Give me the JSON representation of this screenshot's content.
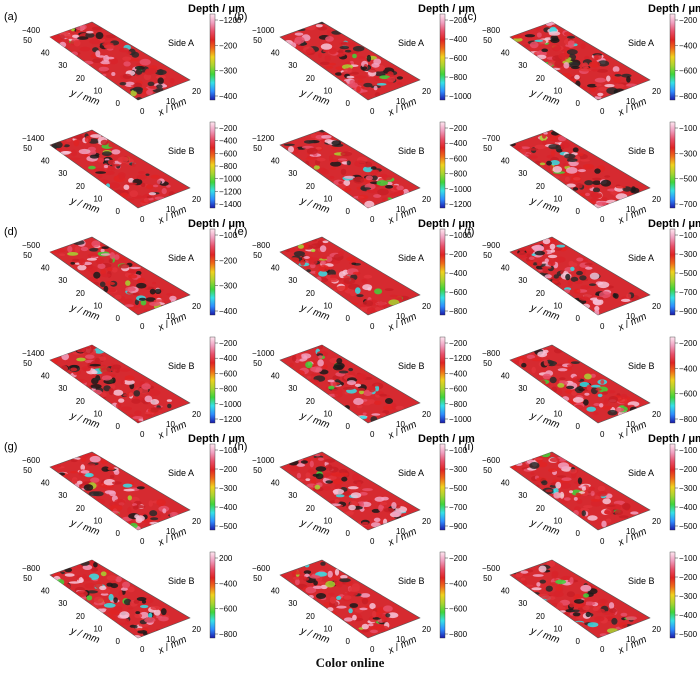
{
  "figure": {
    "caption": "Color online",
    "colorbar_title": "Depth / μm",
    "x_axis_label": "x / mm",
    "y_axis_label": "y / mm",
    "x_ticks": [
      "0",
      "10",
      "20"
    ],
    "y_ticks": [
      "0",
      "10",
      "20",
      "30",
      "40",
      "50"
    ],
    "colormap": [
      "#1a1aa8",
      "#2f8cff",
      "#35e0e8",
      "#3fd43a",
      "#a8d430",
      "#f0d21e",
      "#f06a18",
      "#e02323",
      "#e8506a",
      "#f0a0c0",
      "#ffe6f0"
    ],
    "panels": [
      {
        "label": "(a)",
        "surfaces": [
          {
            "side": "Side A",
            "corner": "−400",
            "ticks": [
              "−1200",
              "−200",
              "−300",
              "−400"
            ]
          },
          {
            "side": "Side B",
            "corner": "−1400",
            "ticks": [
              "−200",
              "−400",
              "−600",
              "−800",
              "−1000",
              "−1200",
              "−1400"
            ]
          }
        ]
      },
      {
        "label": "(b)",
        "surfaces": [
          {
            "side": "Side A",
            "corner": "−1000",
            "ticks": [
              "−200",
              "−400",
              "−600",
              "−800",
              "−1000"
            ]
          },
          {
            "side": "Side B",
            "corner": "−1200",
            "ticks": [
              "−200",
              "−400",
              "−600",
              "−800",
              "−1000",
              "−1200"
            ]
          }
        ]
      },
      {
        "label": "(c)",
        "surfaces": [
          {
            "side": "Side A",
            "corner": "−800",
            "ticks": [
              "−200",
              "−400",
              "−600",
              "−800"
            ]
          },
          {
            "side": "Side B",
            "corner": "−700",
            "ticks": [
              "−100",
              "−300",
              "−500",
              "−700"
            ]
          }
        ]
      },
      {
        "label": "(d)",
        "surfaces": [
          {
            "side": "Side A",
            "corner": "−500",
            "ticks": [
              "−100",
              "−200",
              "−300",
              "−400"
            ]
          },
          {
            "side": "Side B",
            "corner": "−1400",
            "ticks": [
              "−200",
              "−400",
              "−600",
              "−800",
              "−1000",
              "−1200"
            ]
          }
        ]
      },
      {
        "label": "(e)",
        "surfaces": [
          {
            "side": "Side A",
            "corner": "−800",
            "ticks": [
              "−1000",
              "−200",
              "−400",
              "−600",
              "−800"
            ]
          },
          {
            "side": "Side B",
            "corner": "−1000",
            "ticks": [
              "−200",
              "−1200",
              "−400",
              "−600",
              "−800",
              "−1000"
            ]
          }
        ]
      },
      {
        "label": "(f)",
        "surfaces": [
          {
            "side": "Side A",
            "corner": "−900",
            "ticks": [
              "−100",
              "−300",
              "−500",
              "−700",
              "−900"
            ]
          },
          {
            "side": "Side B",
            "corner": "−800",
            "ticks": [
              "−200",
              "−400",
              "−600",
              "−800"
            ]
          }
        ]
      },
      {
        "label": "(g)",
        "surfaces": [
          {
            "side": "Side A",
            "corner": "−600",
            "ticks": [
              "−100",
              "−200",
              "−300",
              "−400",
              "−500"
            ]
          },
          {
            "side": "Side B",
            "corner": "−800",
            "ticks": [
              "200",
              "−400",
              "−600",
              "−800"
            ]
          }
        ]
      },
      {
        "label": "(h)",
        "surfaces": [
          {
            "side": "Side A",
            "corner": "−1000",
            "ticks": [
              "−100",
              "−300",
              "−500",
              "−700",
              "−900"
            ]
          },
          {
            "side": "Side B",
            "corner": "−600",
            "ticks": [
              "−200",
              "−400",
              "−600",
              "−800"
            ]
          }
        ]
      },
      {
        "label": "(i)",
        "surfaces": [
          {
            "side": "Side A",
            "corner": "−600",
            "ticks": [
              "−100",
              "−200",
              "−300",
              "−400",
              "−500"
            ]
          },
          {
            "side": "Side B",
            "corner": "−500",
            "ticks": [
              "−100",
              "−200",
              "−300",
              "−400",
              "−500"
            ]
          }
        ]
      }
    ]
  }
}
